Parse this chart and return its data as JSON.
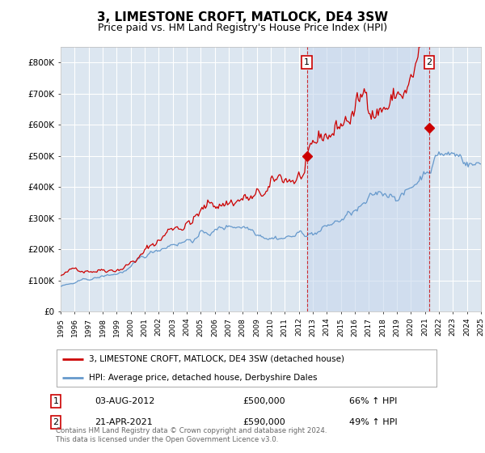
{
  "title": "3, LIMESTONE CROFT, MATLOCK, DE4 3SW",
  "subtitle": "Price paid vs. HM Land Registry's House Price Index (HPI)",
  "title_fontsize": 11,
  "subtitle_fontsize": 9,
  "background_color": "#ffffff",
  "plot_bg_color": "#dce6f0",
  "shade_color": "#c8d8ee",
  "grid_color": "#ffffff",
  "ylim": [
    0,
    850000
  ],
  "yticks": [
    0,
    100000,
    200000,
    300000,
    400000,
    500000,
    600000,
    700000,
    800000
  ],
  "ytick_labels": [
    "£0",
    "£100K",
    "£200K",
    "£300K",
    "£400K",
    "£500K",
    "£600K",
    "£700K",
    "£800K"
  ],
  "year_start": 1995,
  "year_end": 2025,
  "red_line_color": "#cc0000",
  "blue_line_color": "#6699cc",
  "sale1_year": 2012.58,
  "sale1_price": 500000,
  "sale2_year": 2021.3,
  "sale2_price": 590000,
  "legend_label1": "3, LIMESTONE CROFT, MATLOCK, DE4 3SW (detached house)",
  "legend_label2": "HPI: Average price, detached house, Derbyshire Dales",
  "annotation1_date": "03-AUG-2012",
  "annotation1_price": "£500,000",
  "annotation1_hpi": "66% ↑ HPI",
  "annotation2_date": "21-APR-2021",
  "annotation2_price": "£590,000",
  "annotation2_hpi": "49% ↑ HPI",
  "footer": "Contains HM Land Registry data © Crown copyright and database right 2024.\nThis data is licensed under the Open Government Licence v3.0."
}
